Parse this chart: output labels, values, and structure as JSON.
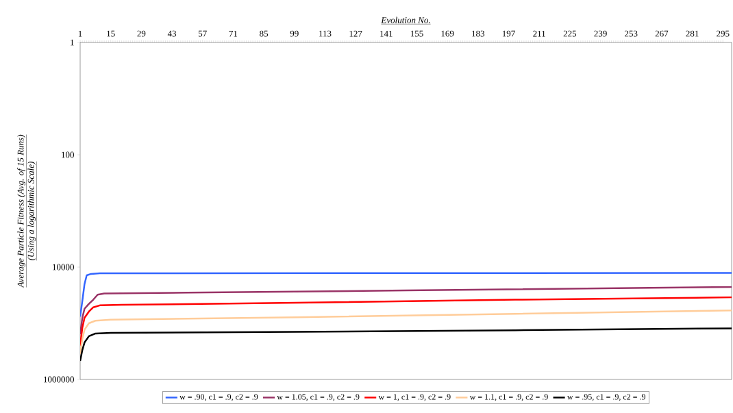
{
  "chart_data": {
    "type": "line",
    "xlabel": "Evolution No.",
    "ylabel": "Average Particle Fitness (Avg. of 15 Runs)",
    "annotations": [
      "(Using a logarithmic Scale)"
    ],
    "xlim": [
      1,
      299
    ],
    "xticks": [
      1,
      15,
      29,
      43,
      57,
      71,
      85,
      99,
      113,
      127,
      141,
      155,
      169,
      183,
      197,
      211,
      225,
      239,
      253,
      267,
      281,
      295
    ],
    "ylim": [
      1000000,
      1
    ],
    "yticks": [
      1,
      100,
      10000,
      1000000
    ],
    "log": "y",
    "grid": false,
    "legend": "bottom",
    "marker": "none",
    "line_style": "solid",
    "series": [
      {
        "name": "w = .90, c1 = .9, c2 = .9",
        "color": "#3366ff",
        "x": [
          1,
          2,
          3,
          4,
          6,
          10,
          299
        ],
        "values": [
          76000,
          40000,
          20000,
          14000,
          13200,
          12900,
          12700
        ]
      },
      {
        "name": "w = 1.05, c1 = .9, c2 = .9",
        "color": "#993366",
        "x": [
          1,
          2,
          3,
          5,
          7,
          9,
          12,
          50,
          150,
          299
        ],
        "values": [
          157000,
          80000,
          55000,
          45000,
          38000,
          31000,
          29500,
          28500,
          26000,
          22500
        ]
      },
      {
        "name": "w = 1, c1 = .9, c2 = .9",
        "color": "#ff0000",
        "x": [
          1,
          2,
          3,
          5,
          7,
          10,
          20,
          100,
          200,
          299
        ],
        "values": [
          250000,
          120000,
          80000,
          62000,
          52000,
          48000,
          47000,
          43000,
          38000,
          34500
        ]
      },
      {
        "name": "w = 1.1, c1 = .9, c2 = .9",
        "color": "#ffcc99",
        "x": [
          1,
          2,
          3,
          5,
          8,
          15,
          100,
          200,
          299
        ],
        "values": [
          355000,
          190000,
          130000,
          100000,
          90000,
          86000,
          78000,
          68000,
          59000
        ]
      },
      {
        "name": "w = .95, c1 = .9, c2 = .9",
        "color": "#000000",
        "x": [
          1,
          2,
          3,
          5,
          8,
          15,
          100,
          200,
          299
        ],
        "values": [
          470000,
          300000,
          220000,
          170000,
          152000,
          148000,
          142000,
          133000,
          123000
        ]
      }
    ]
  }
}
